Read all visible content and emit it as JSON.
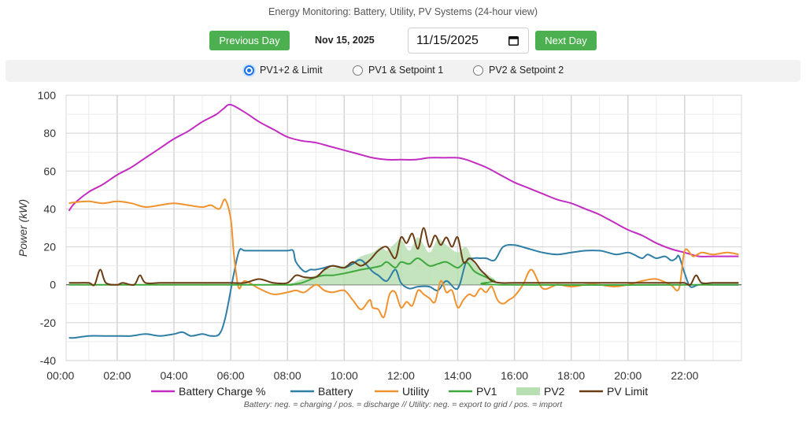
{
  "title": "Energy Monitoring: Battery, Utility, PV Systems (24-hour view)",
  "nav": {
    "prev_label": "Previous Day",
    "next_label": "Next Day",
    "date_label": "Nov 15, 2025",
    "date_input_value": "11/15/2025"
  },
  "view_options": [
    {
      "label": "PV1+2 & Limit",
      "selected": true
    },
    {
      "label": "PV1 & Setpoint 1",
      "selected": false
    },
    {
      "label": "PV2 & Setpoint 2",
      "selected": false
    }
  ],
  "footnote": "Battery: neg. = charging / pos. = discharge // Utility: neg. = export to grid / pos. = import",
  "chart_data": {
    "type": "line",
    "xlabel": "",
    "ylabel": "Power (kW)",
    "xlim": [
      0.2,
      24
    ],
    "ylim": [
      -40,
      100
    ],
    "grid": true,
    "legend_position": "bottom",
    "x_ticks": [
      0,
      2,
      4,
      6,
      8,
      10,
      12,
      14,
      16,
      18,
      20,
      22
    ],
    "x_tick_labels": [
      "00:00",
      "02:00",
      "04:00",
      "06:00",
      "08:00",
      "10:00",
      "12:00",
      "14:00",
      "16:00",
      "18:00",
      "20:00",
      "22:00"
    ],
    "y_ticks": [
      -40,
      -20,
      0,
      20,
      40,
      60,
      80,
      100
    ],
    "y_tick_labels": [
      "-40",
      "-20",
      "0",
      "20",
      "40",
      "60",
      "80",
      "100"
    ],
    "series": [
      {
        "name": "Battery Charge %",
        "color": "#c22cc2",
        "style": "line",
        "x": [
          0.3,
          0.5,
          1,
          1.5,
          2,
          2.5,
          3,
          3.5,
          4,
          4.5,
          5,
          5.5,
          5.75,
          6,
          6.5,
          7,
          7.5,
          8,
          8.5,
          9,
          9.5,
          10,
          10.5,
          11,
          11.5,
          12,
          12.5,
          13,
          13.5,
          14,
          14.3,
          14.5,
          15,
          15.5,
          16,
          16.5,
          17,
          17.5,
          18,
          18.5,
          19,
          19.5,
          20,
          20.5,
          21,
          21.5,
          22,
          22.5,
          23,
          23.5,
          23.9
        ],
        "y": [
          39,
          43,
          49,
          53,
          58,
          62,
          67,
          72,
          77,
          81,
          86,
          90,
          93,
          95,
          91,
          86,
          82,
          78,
          76,
          75,
          73,
          71,
          69,
          67,
          66,
          66,
          66,
          67,
          67,
          67,
          66,
          65,
          62,
          58,
          54,
          51,
          48,
          45,
          43,
          40,
          37,
          33,
          29,
          26,
          22,
          19,
          17,
          15,
          15,
          15,
          15
        ]
      },
      {
        "name": "Battery",
        "color": "#2f7ea6",
        "style": "line",
        "x": [
          0.3,
          0.5,
          1,
          1.5,
          2,
          2.5,
          3,
          3.5,
          4,
          4.3,
          4.6,
          5,
          5.3,
          5.6,
          5.8,
          6,
          6.1,
          6.3,
          6.5,
          7,
          7.5,
          8,
          8.2,
          8.3,
          8.6,
          8.8,
          9,
          9.3,
          9.6,
          10,
          10.3,
          10.6,
          11,
          11.2,
          11.5,
          11.8,
          12,
          12.3,
          12.6,
          13,
          13.3,
          13.6,
          14,
          14.3,
          14.6,
          14.8,
          15,
          15.3,
          15.6,
          16,
          16.5,
          17,
          17.5,
          18,
          18.5,
          19,
          19.3,
          19.6,
          20,
          20.2,
          20.5,
          20.7,
          21,
          21.3,
          21.5,
          21.6,
          21.7,
          21.8,
          22,
          22.2,
          22.5,
          23,
          23.5,
          23.9
        ],
        "y": [
          -28,
          -28,
          -27,
          -27,
          -27,
          -27,
          -26,
          -27,
          -26,
          -25,
          -27,
          -26,
          -27,
          -26,
          -18,
          -3,
          5,
          18,
          18,
          18,
          18,
          18,
          18,
          12,
          7,
          8,
          8,
          9,
          10,
          9,
          11,
          13,
          7,
          5,
          2,
          8,
          1,
          -2,
          -1,
          -1,
          -3,
          2,
          -2,
          12,
          14,
          14,
          14,
          13,
          20,
          21,
          19,
          17,
          16,
          17,
          18,
          18,
          17,
          16,
          17,
          16,
          14,
          16,
          14,
          15,
          13,
          13,
          14,
          15,
          6,
          -1,
          0,
          0,
          0,
          0
        ]
      },
      {
        "name": "Utility",
        "color": "#f0922d",
        "style": "line",
        "x": [
          0.3,
          0.5,
          1,
          1.5,
          2,
          2.5,
          3,
          3.5,
          4,
          4.5,
          5,
          5.3,
          5.6,
          5.8,
          6,
          6.1,
          6.2,
          6.3,
          6.5,
          7,
          7.5,
          8,
          8.3,
          8.6,
          9,
          9.3,
          9.6,
          10,
          10.3,
          10.6,
          10.9,
          11,
          11.2,
          11.4,
          11.6,
          11.8,
          12,
          12.2,
          12.4,
          12.6,
          12.8,
          13,
          13.2,
          13.4,
          13.6,
          13.8,
          14,
          14.2,
          14.4,
          14.6,
          14.8,
          15,
          15.2,
          15.4,
          15.6,
          15.8,
          16,
          16.3,
          16.6,
          17,
          17.5,
          18,
          18.5,
          19,
          19.5,
          20,
          20.5,
          21,
          21.5,
          21.8,
          22,
          22.3,
          22.6,
          23,
          23.5,
          23.9
        ],
        "y": [
          43,
          43.5,
          44,
          43,
          44,
          43,
          41,
          42,
          43,
          42,
          41,
          42,
          40,
          45,
          35,
          18,
          5,
          -2,
          2,
          -2,
          -5,
          -4,
          -3,
          -4,
          0,
          -3,
          -4,
          -3,
          -8,
          -13,
          -8,
          -12,
          -13,
          -17,
          -5,
          -4,
          -12,
          -9,
          -11,
          -3,
          -5,
          -7,
          -9,
          2,
          -4,
          -3,
          -12,
          -8,
          -5,
          -6,
          -2,
          -4,
          -1,
          -8,
          -10,
          -8,
          -6,
          0,
          8,
          -2,
          0,
          -1,
          0,
          0,
          -1,
          0,
          2,
          3,
          0,
          -2,
          18,
          15,
          17,
          16,
          17,
          16
        ]
      },
      {
        "name": "PV1",
        "color": "#3ea83a",
        "style": "line",
        "x": [
          0.3,
          7.5,
          8,
          8.5,
          9,
          9.3,
          9.6,
          10,
          10.3,
          10.6,
          11,
          11.3,
          11.5,
          11.8,
          12,
          12.3,
          12.6,
          13,
          13.3,
          13.6,
          14,
          14.3,
          14.6,
          15,
          15.3,
          15.5,
          23.9
        ],
        "y": [
          0,
          0,
          0,
          1,
          4,
          5,
          5,
          6,
          7,
          8,
          9,
          10,
          12,
          9,
          12,
          11,
          14,
          10,
          11,
          12,
          9,
          12,
          7,
          4,
          2,
          0,
          0
        ]
      },
      {
        "name": "PV2",
        "color": "#b8dfb1",
        "style": "area",
        "x": [
          0.3,
          7.5,
          8,
          8.5,
          9,
          9.3,
          9.6,
          10,
          10.3,
          10.6,
          11,
          11.3,
          11.5,
          11.8,
          12,
          12.3,
          12.6,
          13,
          13.3,
          13.6,
          14,
          14.3,
          14.6,
          15,
          15.3,
          15.5,
          23.9
        ],
        "y": [
          0,
          0,
          0,
          3,
          5,
          8,
          9,
          10,
          12,
          15,
          17,
          20,
          18,
          22,
          24,
          18,
          25,
          17,
          24,
          21,
          17,
          20,
          11,
          6,
          3,
          0,
          0
        ]
      },
      {
        "name": "PV Limit",
        "color": "#6b3c14",
        "style": "line",
        "x": [
          0.3,
          0.5,
          1,
          1.2,
          1.4,
          1.6,
          2,
          2.2,
          2.6,
          2.8,
          3,
          3.5,
          4,
          4.5,
          5,
          5.5,
          6,
          6.5,
          7,
          7.5,
          8,
          8.3,
          8.6,
          9,
          9.3,
          9.6,
          10,
          10.3,
          10.6,
          10.9,
          11.2,
          11.5,
          11.8,
          12,
          12.2,
          12.4,
          12.6,
          12.8,
          13,
          13.2,
          13.4,
          13.6,
          13.8,
          14,
          14.2,
          14.4,
          14.6,
          14.8,
          15,
          15.2,
          15.5,
          16,
          17,
          18,
          19,
          20,
          20.5,
          21,
          21.5,
          21.8,
          22,
          22.2,
          22.4,
          22.6,
          23,
          23.5,
          23.9
        ],
        "y": [
          1,
          1,
          1,
          0,
          8,
          1,
          0,
          1,
          0,
          5,
          1,
          1,
          1,
          1,
          1,
          1,
          1,
          1,
          3,
          1,
          1,
          5,
          4,
          4,
          8,
          10,
          9,
          12,
          10,
          13,
          18,
          20,
          14,
          25,
          22,
          27,
          19,
          30,
          20,
          26,
          21,
          25,
          20,
          25,
          12,
          14,
          12,
          8,
          5,
          2,
          1,
          1,
          1,
          1,
          1,
          1,
          1,
          1,
          1,
          1,
          1,
          0,
          5,
          1,
          1,
          1,
          1
        ]
      }
    ]
  }
}
